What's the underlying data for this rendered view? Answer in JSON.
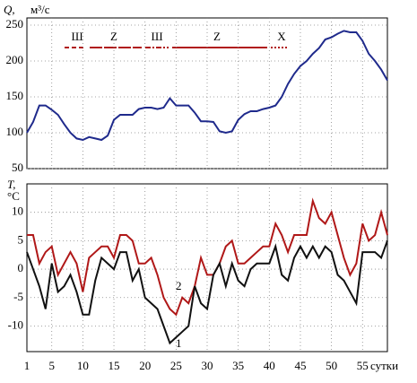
{
  "chart_data": [
    {
      "type": "line",
      "y_label": "Q,",
      "y_unit": "м³/с",
      "x": [
        1,
        2,
        3,
        4,
        5,
        6,
        7,
        8,
        9,
        10,
        11,
        12,
        13,
        14,
        15,
        16,
        17,
        18,
        19,
        20,
        21,
        22,
        23,
        24,
        25,
        26,
        27,
        28,
        29,
        30,
        31,
        32,
        33,
        34,
        35,
        36,
        37,
        38,
        39,
        40,
        41,
        42,
        43,
        44,
        45,
        46,
        47,
        48,
        49,
        50,
        51,
        52,
        53,
        54,
        55,
        56,
        57,
        58,
        59
      ],
      "series": [
        {
          "name": "Q",
          "color": "#1f2a8c",
          "values": [
            100,
            115,
            138,
            138,
            132,
            125,
            112,
            100,
            92,
            90,
            94,
            92,
            90,
            96,
            118,
            125,
            125,
            125,
            133,
            135,
            135,
            133,
            135,
            148,
            138,
            138,
            138,
            128,
            116,
            116,
            115,
            102,
            100,
            102,
            118,
            126,
            130,
            130,
            133,
            135,
            138,
            150,
            168,
            182,
            193,
            200,
            210,
            218,
            230,
            233,
            238,
            242,
            240,
            240,
            228,
            210,
            200,
            188,
            173
          ]
        }
      ],
      "xlim": [
        1,
        59
      ],
      "ylim": [
        50,
        260
      ],
      "yticks": [
        50,
        100,
        150,
        200,
        250
      ],
      "grid": true,
      "annotations": [
        "Ш",
        "Z",
        "Ш",
        "Z",
        "X"
      ]
    },
    {
      "type": "line",
      "y_label": "T,",
      "y_unit": "°C",
      "x_label": "сутки",
      "x": [
        1,
        2,
        3,
        4,
        5,
        6,
        7,
        8,
        9,
        10,
        11,
        12,
        13,
        14,
        15,
        16,
        17,
        18,
        19,
        20,
        21,
        22,
        23,
        24,
        25,
        26,
        27,
        28,
        29,
        30,
        31,
        32,
        33,
        34,
        35,
        36,
        37,
        38,
        39,
        40,
        41,
        42,
        43,
        44,
        45,
        46,
        47,
        48,
        49,
        50,
        51,
        52,
        53,
        54,
        55,
        56,
        57,
        58,
        59
      ],
      "series": [
        {
          "name": "2",
          "color": "#b01818",
          "values": [
            6,
            6,
            1,
            3,
            4,
            -1,
            1,
            3,
            1,
            -4,
            2,
            3,
            4,
            4,
            2,
            6,
            6,
            5,
            1,
            1,
            2,
            -1,
            -5,
            -7,
            -8,
            -5,
            -6,
            -3,
            2,
            -1,
            -1,
            1,
            4,
            5,
            1,
            1,
            2,
            3,
            4,
            4,
            8,
            6,
            3,
            6,
            6,
            6,
            12,
            9,
            8,
            10,
            6,
            2,
            -1,
            1,
            8,
            5,
            6,
            10,
            6
          ]
        },
        {
          "name": "1",
          "color": "#111111",
          "values": [
            3,
            0,
            -3,
            -7,
            1,
            -4,
            -3,
            -1,
            -4,
            -8,
            -8,
            -2,
            2,
            1,
            0,
            3,
            3,
            -2,
            0,
            -5,
            -6,
            -7,
            -10,
            -13,
            -12,
            -11,
            -10,
            -3,
            -6,
            -7,
            -1,
            1,
            -3,
            1,
            -2,
            -3,
            0,
            1,
            1,
            1,
            4,
            -1,
            -2,
            2,
            4,
            2,
            4,
            2,
            4,
            3,
            -1,
            -2,
            -4,
            -6,
            3,
            3,
            3,
            2,
            5
          ]
        }
      ],
      "xlim": [
        1,
        59
      ],
      "ylim": [
        -14.5,
        15
      ],
      "yticks": [
        -10,
        -5,
        0,
        5,
        10
      ],
      "xticks": [
        1,
        5,
        10,
        15,
        20,
        25,
        30,
        35,
        40,
        45,
        50,
        55
      ],
      "grid": true
    }
  ]
}
